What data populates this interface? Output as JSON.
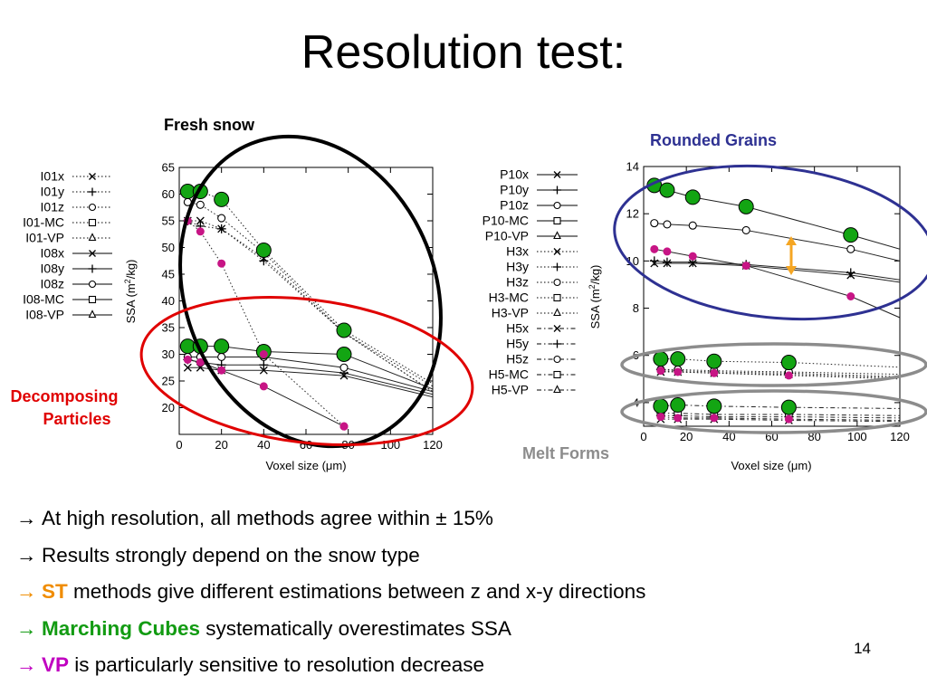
{
  "slide": {
    "title": "Resolution test:",
    "page_number": "14"
  },
  "annotations": {
    "fresh_snow": "Fresh snow",
    "rounded_grains": "Rounded Grains",
    "decomposing_1": "Decomposing",
    "decomposing_2": "Particles",
    "melt_forms": "Melt Forms"
  },
  "bullets": {
    "arrow": "→",
    "b1": "At high resolution, all methods agree within ± 15%",
    "b2": "Results strongly depend on the snow type",
    "b3_key": "ST",
    "b3_rest": " methods give different estimations between z and x-y directions",
    "b4_key": "Marching Cubes",
    "b4_rest": " systematically overestimates SSA",
    "b5_key": "VP",
    "b5_rest": " is particularly sensitive to resolution decrease"
  },
  "colors": {
    "circle_fresh": "#000000",
    "circle_decomposing": "#e00000",
    "circle_rounded": "#2e3192",
    "circle_melt": "#8c8c8c",
    "mc_marker": "#13a513",
    "vp_marker": "#c71585",
    "double_arrow": "#f5a623",
    "label_red": "#e00000",
    "label_blue": "#2e3192",
    "label_gray": "#8c8c8c"
  },
  "chart_data": [
    {
      "type": "line",
      "xlabel": "Voxel size (μm)",
      "ylabel_pre": "SSA (m",
      "ylabel_sup": "2",
      "ylabel_post": "/kg)",
      "xlim": [
        0,
        120
      ],
      "ylim": [
        15,
        65
      ],
      "xticks": [
        0,
        20,
        40,
        60,
        80,
        100,
        120
      ],
      "yticks": [
        20,
        25,
        30,
        35,
        40,
        45,
        50,
        55,
        60,
        65
      ],
      "legend_position": "left",
      "legend": [
        {
          "name": "I01x",
          "marker": "x",
          "dash": "dot"
        },
        {
          "name": "I01y",
          "marker": "plus",
          "dash": "dot"
        },
        {
          "name": "I01z",
          "marker": "circle",
          "dash": "dot"
        },
        {
          "name": "I01-MC",
          "marker": "square",
          "dash": "dot"
        },
        {
          "name": "I01-VP",
          "marker": "triangle",
          "dash": "dot"
        },
        {
          "name": "I08x",
          "marker": "x",
          "dash": "solid"
        },
        {
          "name": "I08y",
          "marker": "plus",
          "dash": "solid"
        },
        {
          "name": "I08z",
          "marker": "circle",
          "dash": "solid"
        },
        {
          "name": "I08-MC",
          "marker": "square",
          "dash": "solid"
        },
        {
          "name": "I08-VP",
          "marker": "triangle",
          "dash": "solid"
        }
      ],
      "series": [
        {
          "name": "I01x",
          "dash": "dot",
          "marker": "x",
          "x": [
            4,
            10,
            20,
            40,
            78,
            120
          ],
          "y": [
            55,
            55,
            53.5,
            48,
            34,
            23
          ]
        },
        {
          "name": "I01y",
          "dash": "dot",
          "marker": "plus",
          "x": [
            4,
            10,
            20,
            40,
            78,
            120
          ],
          "y": [
            55,
            54,
            53.5,
            47.5,
            34,
            23
          ]
        },
        {
          "name": "I01z",
          "dash": "dot",
          "marker": "circle",
          "x": [
            4,
            10,
            20,
            40,
            78,
            120
          ],
          "y": [
            58.5,
            58,
            55.5,
            49,
            34,
            24
          ]
        },
        {
          "name": "I01-MC",
          "dash": "dot",
          "marker": "mc",
          "x": [
            4,
            10,
            20,
            40,
            78,
            120
          ],
          "y": [
            60.5,
            60.5,
            59,
            49.5,
            34.5,
            24.5
          ]
        },
        {
          "name": "I01-VP",
          "dash": "dot",
          "marker": "vp",
          "x": [
            4,
            10,
            20,
            40,
            78
          ],
          "y": [
            55,
            53,
            47,
            30,
            16.5
          ]
        },
        {
          "name": "I08x",
          "dash": "solid",
          "marker": "x",
          "x": [
            4,
            10,
            20,
            40,
            78,
            120
          ],
          "y": [
            27.5,
            27.5,
            27,
            27,
            26,
            22
          ]
        },
        {
          "name": "I08y",
          "dash": "solid",
          "marker": "plus",
          "x": [
            4,
            10,
            20,
            40,
            78,
            120
          ],
          "y": [
            29,
            28.5,
            28,
            28,
            26.5,
            22.5
          ]
        },
        {
          "name": "I08z",
          "dash": "solid",
          "marker": "circle",
          "x": [
            4,
            10,
            20,
            40,
            78,
            120
          ],
          "y": [
            29.5,
            29.5,
            29.5,
            29.5,
            27.5,
            23
          ]
        },
        {
          "name": "I08-MC",
          "dash": "solid",
          "marker": "mc",
          "x": [
            4,
            10,
            20,
            40,
            78,
            120
          ],
          "y": [
            31.5,
            31.5,
            31.5,
            30.5,
            30,
            23.5
          ]
        },
        {
          "name": "I08-VP",
          "dash": "solid",
          "marker": "vp",
          "x": [
            4,
            10,
            20,
            40,
            78
          ],
          "y": [
            29,
            28.5,
            27,
            24,
            16.5
          ]
        }
      ]
    },
    {
      "type": "line",
      "xlabel": "Voxel size (μm)",
      "ylabel_pre": "SSA (m",
      "ylabel_sup": "2",
      "ylabel_post": "/kg)",
      "xlim": [
        0,
        120
      ],
      "ylim": [
        3,
        14
      ],
      "xticks": [
        0,
        20,
        40,
        60,
        80,
        100,
        120
      ],
      "yticks": [
        4,
        6,
        8,
        10,
        12,
        14
      ],
      "legend_position": "left",
      "legend": [
        {
          "name": "P10x",
          "marker": "x",
          "dash": "solid"
        },
        {
          "name": "P10y",
          "marker": "plus",
          "dash": "solid"
        },
        {
          "name": "P10z",
          "marker": "circle",
          "dash": "solid"
        },
        {
          "name": "P10-MC",
          "marker": "square",
          "dash": "solid"
        },
        {
          "name": "P10-VP",
          "marker": "triangle",
          "dash": "solid"
        },
        {
          "name": "H3x",
          "marker": "x",
          "dash": "dot"
        },
        {
          "name": "H3y",
          "marker": "plus",
          "dash": "dot"
        },
        {
          "name": "H3z",
          "marker": "circle",
          "dash": "dot"
        },
        {
          "name": "H3-MC",
          "marker": "square",
          "dash": "dot"
        },
        {
          "name": "H3-VP",
          "marker": "triangle",
          "dash": "dot"
        },
        {
          "name": "H5x",
          "marker": "x",
          "dash": "dashdot"
        },
        {
          "name": "H5y",
          "marker": "plus",
          "dash": "dashdot"
        },
        {
          "name": "H5z",
          "marker": "circle",
          "dash": "dashdot"
        },
        {
          "name": "H5-MC",
          "marker": "square",
          "dash": "dashdot"
        },
        {
          "name": "H5-VP",
          "marker": "triangle",
          "dash": "dashdot"
        }
      ],
      "series": [
        {
          "name": "P10x",
          "dash": "solid",
          "marker": "x",
          "x": [
            5,
            11,
            23,
            48,
            97,
            120
          ],
          "y": [
            9.9,
            9.9,
            9.9,
            9.8,
            9.4,
            9.1
          ]
        },
        {
          "name": "P10y",
          "dash": "solid",
          "marker": "plus",
          "x": [
            5,
            11,
            23,
            48,
            97,
            120
          ],
          "y": [
            10.0,
            9.95,
            9.95,
            9.85,
            9.5,
            9.2
          ]
        },
        {
          "name": "P10z",
          "dash": "solid",
          "marker": "circle",
          "x": [
            5,
            11,
            23,
            48,
            97,
            120
          ],
          "y": [
            11.6,
            11.55,
            11.5,
            11.3,
            10.5,
            10.0
          ]
        },
        {
          "name": "P10-MC",
          "dash": "solid",
          "marker": "mc",
          "x": [
            5,
            11,
            23,
            48,
            97,
            120
          ],
          "y": [
            13.2,
            13.0,
            12.7,
            12.3,
            11.1,
            10.5
          ]
        },
        {
          "name": "P10-VP",
          "dash": "solid",
          "marker": "vp",
          "x": [
            5,
            11,
            23,
            48,
            97,
            120
          ],
          "y": [
            10.5,
            10.4,
            10.2,
            9.8,
            8.5,
            7.6
          ]
        },
        {
          "name": "H3x",
          "dash": "dot",
          "marker": "x",
          "x": [
            8,
            16,
            33,
            68,
            120
          ],
          "y": [
            5.3,
            5.3,
            5.25,
            5.2,
            5.05
          ]
        },
        {
          "name": "H3y",
          "dash": "dot",
          "marker": "plus",
          "x": [
            8,
            16,
            33,
            68,
            120
          ],
          "y": [
            5.4,
            5.35,
            5.3,
            5.25,
            5.1
          ]
        },
        {
          "name": "H3z",
          "dash": "dot",
          "marker": "circle",
          "x": [
            8,
            16,
            33,
            68,
            120
          ],
          "y": [
            5.4,
            5.4,
            5.35,
            5.3,
            5.2
          ]
        },
        {
          "name": "H3-MC",
          "dash": "dot",
          "marker": "mc",
          "x": [
            8,
            16,
            33,
            68,
            120
          ],
          "y": [
            5.85,
            5.85,
            5.75,
            5.7,
            5.5
          ]
        },
        {
          "name": "H3-VP",
          "dash": "dot",
          "marker": "vp",
          "x": [
            8,
            16,
            33,
            68,
            120
          ],
          "y": [
            5.35,
            5.3,
            5.25,
            5.15,
            5.0
          ]
        },
        {
          "name": "H5x",
          "dash": "dashdot",
          "marker": "x",
          "x": [
            8,
            16,
            33,
            68,
            120
          ],
          "y": [
            3.3,
            3.3,
            3.3,
            3.25,
            3.2
          ]
        },
        {
          "name": "H5y",
          "dash": "dashdot",
          "marker": "plus",
          "x": [
            8,
            16,
            33,
            68,
            120
          ],
          "y": [
            3.45,
            3.45,
            3.4,
            3.4,
            3.35
          ]
        },
        {
          "name": "H5z",
          "dash": "dashdot",
          "marker": "circle",
          "x": [
            8,
            16,
            33,
            68,
            120
          ],
          "y": [
            3.55,
            3.55,
            3.5,
            3.5,
            3.45
          ]
        },
        {
          "name": "H5-MC",
          "dash": "dashdot",
          "marker": "mc",
          "x": [
            8,
            16,
            33,
            68,
            120
          ],
          "y": [
            3.85,
            3.9,
            3.85,
            3.8,
            3.75
          ]
        },
        {
          "name": "H5-VP",
          "dash": "dashdot",
          "marker": "vp",
          "x": [
            8,
            16,
            33,
            68,
            120
          ],
          "y": [
            3.4,
            3.35,
            3.35,
            3.3,
            3.25
          ]
        }
      ]
    }
  ]
}
